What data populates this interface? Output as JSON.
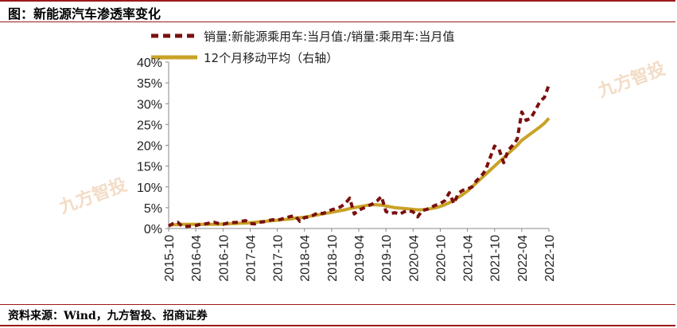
{
  "header": {
    "title": "图：新能源汽车渗透率变化"
  },
  "footer": {
    "source": "资料来源：Wind，九方智投、招商证券"
  },
  "watermark": {
    "text": "九方智投"
  },
  "chart_data": {
    "type": "line",
    "ylim": [
      0,
      40
    ],
    "y_ticks": [
      "0%",
      "5%",
      "10%",
      "15%",
      "20%",
      "25%",
      "30%",
      "35%",
      "40%"
    ],
    "x_ticks": [
      "2015-10",
      "2016-04",
      "2016-10",
      "2017-04",
      "2017-10",
      "2018-04",
      "2018-10",
      "2019-04",
      "2019-10",
      "2020-04",
      "2020-10",
      "2021-04",
      "2021-10",
      "2022-04",
      "2022-10"
    ],
    "x_start": "2015-10",
    "legend_position": "top",
    "series": [
      {
        "name": "销量:新能源乘用车:当月值:/销量:乘用车:当月值",
        "color": "#7a0f0f",
        "style": "dashed",
        "values": [
          0.6,
          1.2,
          1.5,
          0.5,
          0.5,
          0.6,
          0.7,
          1.0,
          1.1,
          1.3,
          1.5,
          1.2,
          1.0,
          1.3,
          1.4,
          1.5,
          1.7,
          1.9,
          1.2,
          1.1,
          1.5,
          1.6,
          1.9,
          2.1,
          2.0,
          2.3,
          2.6,
          2.9,
          3.0,
          1.7,
          2.6,
          2.8,
          3.2,
          3.8,
          3.6,
          4.0,
          4.5,
          4.8,
          5.2,
          6.0,
          7.3,
          3.5,
          4.4,
          4.9,
          5.4,
          5.9,
          6.6,
          7.7,
          4.1,
          3.6,
          3.8,
          3.4,
          4.0,
          4.3,
          4.0,
          2.8,
          4.3,
          4.6,
          5.1,
          5.6,
          6.0,
          6.7,
          8.6,
          6.0,
          8.5,
          9.2,
          9.5,
          10.0,
          11.5,
          12.5,
          14.0,
          17.0,
          19.8,
          19.0,
          15.8,
          18.8,
          20.0,
          21.5,
          28.0,
          26.0,
          26.5,
          28.4,
          30.5,
          31.5,
          34.5
        ]
      },
      {
        "name": "12个月移动平均（右轴）",
        "color": "#c9a227",
        "style": "solid",
        "values": [
          0.8,
          0.9,
          0.9,
          1.0,
          1.0,
          1.0,
          1.0,
          1.0,
          1.0,
          1.0,
          1.0,
          1.0,
          1.1,
          1.1,
          1.2,
          1.2,
          1.3,
          1.3,
          1.4,
          1.5,
          1.6,
          1.7,
          1.8,
          1.9,
          2.0,
          2.1,
          2.2,
          2.3,
          2.5,
          2.6,
          2.7,
          2.9,
          3.1,
          3.3,
          3.5,
          3.7,
          3.9,
          4.1,
          4.3,
          4.5,
          4.8,
          5.0,
          5.2,
          5.4,
          5.6,
          5.7,
          5.7,
          5.6,
          5.4,
          5.2,
          5.0,
          4.9,
          4.8,
          4.7,
          4.6,
          4.5,
          4.5,
          4.6,
          4.8,
          5.0,
          5.3,
          5.7,
          6.2,
          6.8,
          7.5,
          8.2,
          9.0,
          10.0,
          11.0,
          12.0,
          13.0,
          14.0,
          15.0,
          16.0,
          17.0,
          18.0,
          19.0,
          20.0,
          21.2,
          22.0,
          22.8,
          23.6,
          24.4,
          25.3,
          26.5
        ]
      }
    ]
  }
}
